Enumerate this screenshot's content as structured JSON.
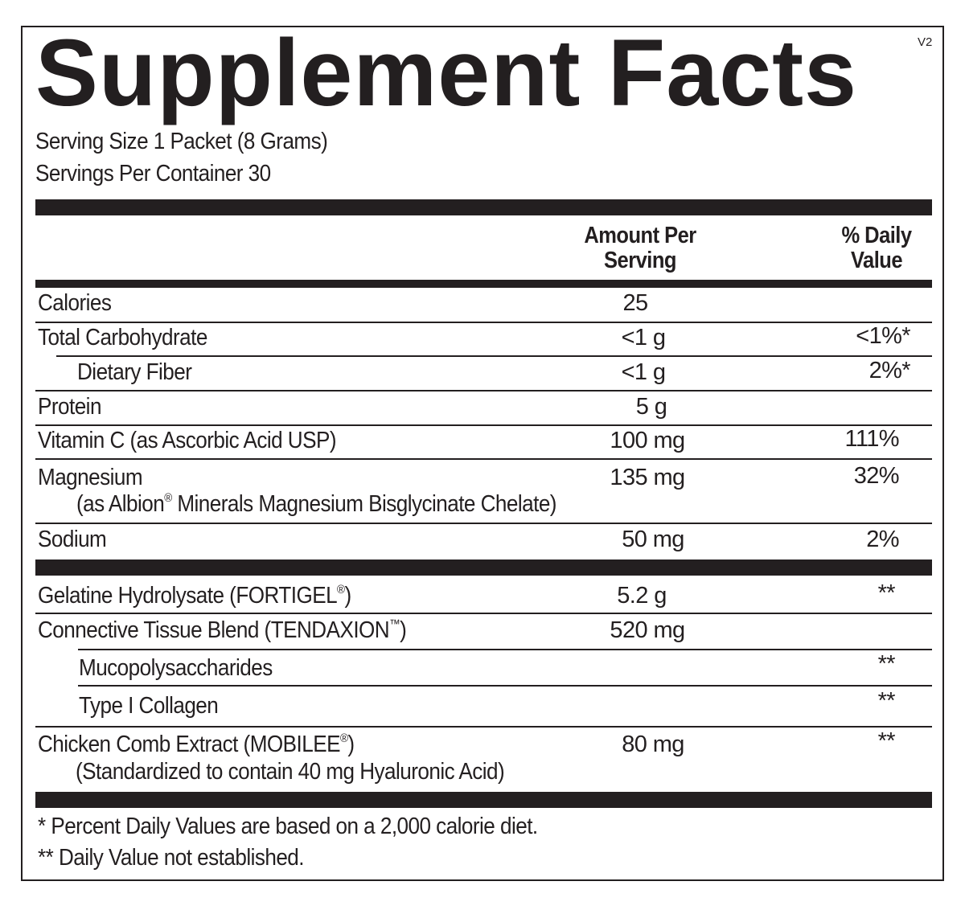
{
  "title": "Supplement Facts",
  "version": "V2",
  "serving_size": "Serving Size 1 Packet (8 Grams)",
  "servings_per_container": "Servings Per Container 30",
  "headers": {
    "amount_line1": "Amount Per",
    "amount_line2": "Serving",
    "dv_line1": "% Daily",
    "dv_line2": "Value"
  },
  "rows": [
    {
      "name": "Calories",
      "amount": "25",
      "dv": ""
    },
    {
      "name": "Total Carbohydrate",
      "amount": "<1 g",
      "dv": "<1%*"
    },
    {
      "name": "Dietary Fiber",
      "amount": "<1 g",
      "dv": "2%*"
    },
    {
      "name": "Protein",
      "amount": "5 g",
      "dv": ""
    },
    {
      "name": "Vitamin C (as Ascorbic Acid USP)",
      "amount": "100 mg",
      "dv": "111%"
    },
    {
      "name": "Magnesium",
      "sub_a": "(as Albion",
      "reg": "®",
      "sub_b": " Minerals Magnesium Bisglycinate Chelate)",
      "amount": "135 mg",
      "dv": "32%"
    },
    {
      "name": "Sodium",
      "amount": "50 mg",
      "dv": "2%"
    },
    {
      "name": "Gelatine Hydrolysate (FORTIGEL",
      "mark": "®",
      "close": ")",
      "amount": "5.2 g",
      "dv": "**"
    },
    {
      "name": "Connective Tissue Blend (TENDAXION",
      "mark": "™",
      "close": ")",
      "amount": "520 mg",
      "dv": ""
    },
    {
      "name": "Mucopolysaccharides",
      "amount": "",
      "dv": "**"
    },
    {
      "name": "Type I Collagen",
      "amount": "",
      "dv": "**"
    },
    {
      "name": "Chicken Comb Extract (MOBILEE",
      "mark": "®",
      "close": ")",
      "sub": "(Standardized to contain 40 mg Hyaluronic Acid)",
      "amount": "80 mg",
      "dv": "**"
    }
  ],
  "footnotes": [
    "* Percent Daily Values are based on a 2,000 calorie diet.",
    "** Daily Value not established."
  ]
}
